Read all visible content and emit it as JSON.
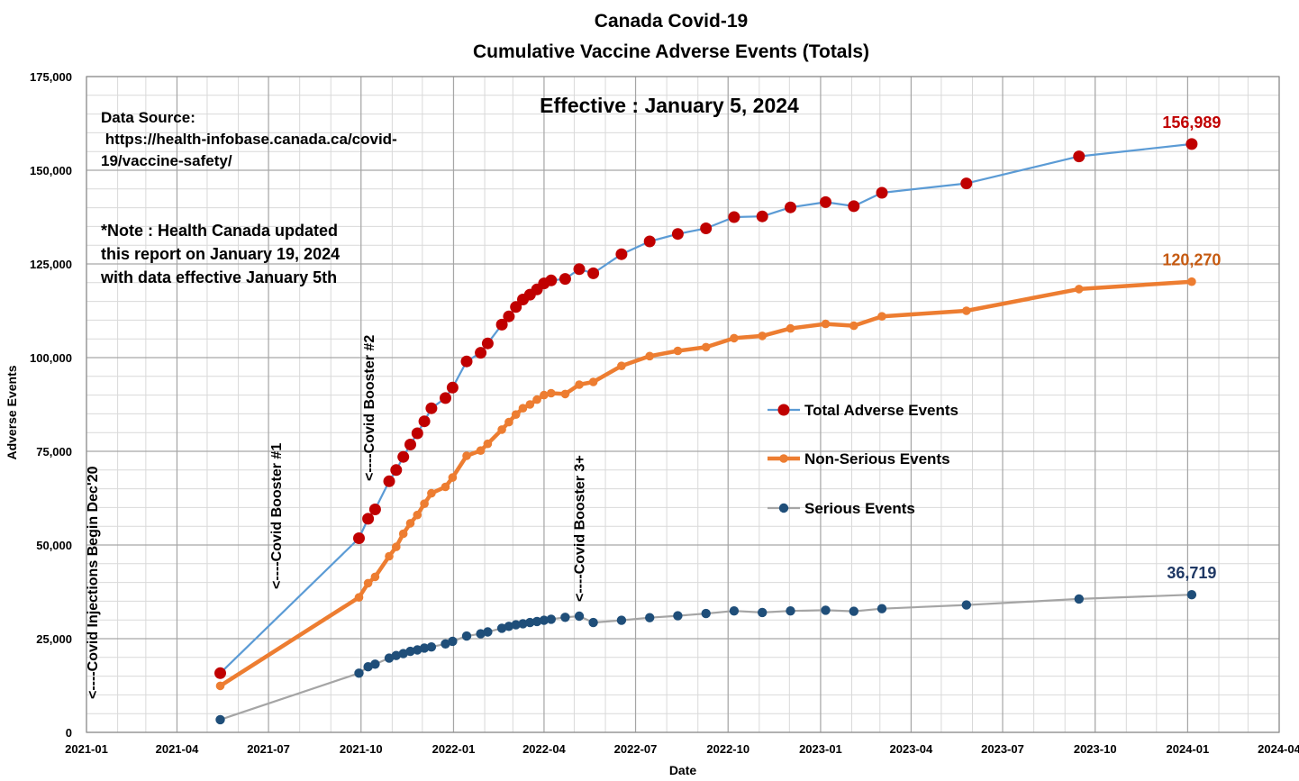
{
  "chart_data": {
    "type": "line",
    "title": "Canada Covid-19",
    "subtitle": "Cumulative Vaccine Adverse Events (Totals)",
    "xlabel": "Date",
    "ylabel": "Adverse Events",
    "ylim": [
      0,
      175000
    ],
    "xlim": [
      "2021-01-01",
      "2024-04-01"
    ],
    "grid": true,
    "legend_position": "center-right",
    "y_ticks": [
      "0",
      "25,000",
      "50,000",
      "75,000",
      "100,000",
      "125,000",
      "150,000",
      "175,000"
    ],
    "x_ticks": [
      {
        "date": "2021-01-01",
        "label": "2021-01"
      },
      {
        "date": "2021-04-01",
        "label": "2021-04"
      },
      {
        "date": "2021-07-01",
        "label": "2021-07"
      },
      {
        "date": "2021-10-01",
        "label": "2021-10"
      },
      {
        "date": "2022-01-01",
        "label": "2022-01"
      },
      {
        "date": "2022-04-01",
        "label": "2022-04"
      },
      {
        "date": "2022-07-01",
        "label": "2022-07"
      },
      {
        "date": "2022-10-01",
        "label": "2022-10"
      },
      {
        "date": "2023-01-01",
        "label": "2023-01"
      },
      {
        "date": "2023-04-01",
        "label": "2023-04"
      },
      {
        "date": "2023-07-01",
        "label": "2023-07"
      },
      {
        "date": "2023-10-01",
        "label": "2023-10"
      },
      {
        "date": "2024-01-01",
        "label": "2024-01"
      },
      {
        "date": "2024-04-01",
        "label": "2024-04"
      }
    ],
    "effective_label": "Effective : January 5, 2024",
    "source_lines": [
      "Data Source:",
      " https://health-infobase.canada.ca/covid-",
      "19/vaccine-safety/"
    ],
    "note_lines": [
      "*Note : Health Canada updated",
      "this report on January 19, 2024",
      "with data effective January 5th"
    ],
    "events": [
      {
        "date": "2021-01-01",
        "label": "<----Covid Injections Begin Dec'20"
      },
      {
        "date": "2021-07-01",
        "label": "<----Covid Booster #1"
      },
      {
        "date": "2021-10-01",
        "label": "<----Covid Booster #2"
      },
      {
        "date": "2022-05-01",
        "label": "<----Covid Booster 3+"
      }
    ],
    "series": [
      {
        "name": "Total Adverse Events",
        "color": "#5b9bd5",
        "marker_color": "#c00000",
        "end_label": "156,989",
        "end_label_color": "#c00000",
        "points": [
          [
            "2021-05-14",
            15800
          ],
          [
            "2021-09-29",
            51800
          ],
          [
            "2021-10-08",
            57000
          ],
          [
            "2021-10-15",
            59500
          ],
          [
            "2021-10-29",
            67000
          ],
          [
            "2021-11-05",
            70000
          ],
          [
            "2021-11-12",
            73500
          ],
          [
            "2021-11-19",
            76800
          ],
          [
            "2021-11-26",
            79800
          ],
          [
            "2021-12-03",
            83000
          ],
          [
            "2021-12-10",
            86500
          ],
          [
            "2021-12-24",
            89200
          ],
          [
            "2021-12-31",
            92000
          ],
          [
            "2022-01-14",
            99000
          ],
          [
            "2022-01-28",
            101300
          ],
          [
            "2022-02-04",
            103800
          ],
          [
            "2022-02-18",
            108800
          ],
          [
            "2022-02-25",
            111000
          ],
          [
            "2022-03-04",
            113500
          ],
          [
            "2022-03-11",
            115500
          ],
          [
            "2022-03-18",
            116800
          ],
          [
            "2022-03-25",
            118200
          ],
          [
            "2022-04-01",
            119800
          ],
          [
            "2022-04-08",
            120600
          ],
          [
            "2022-04-22",
            121000
          ],
          [
            "2022-05-06",
            123600
          ],
          [
            "2022-05-20",
            122500
          ],
          [
            "2022-06-17",
            127600
          ],
          [
            "2022-07-15",
            131000
          ],
          [
            "2022-08-12",
            133000
          ],
          [
            "2022-09-09",
            134500
          ],
          [
            "2022-10-07",
            137500
          ],
          [
            "2022-11-04",
            137700
          ],
          [
            "2022-12-02",
            140100
          ],
          [
            "2023-01-06",
            141500
          ],
          [
            "2023-02-03",
            140400
          ],
          [
            "2023-03-03",
            144000
          ],
          [
            "2023-05-26",
            146500
          ],
          [
            "2023-09-15",
            153700
          ],
          [
            "2024-01-05",
            156989
          ]
        ]
      },
      {
        "name": "Non-Serious Events",
        "color": "#ed7d31",
        "marker_color": "#ed7d31",
        "end_label": "120,270",
        "end_label_color": "#c55a11",
        "points": [
          [
            "2021-05-14",
            12400
          ],
          [
            "2021-09-29",
            36000
          ],
          [
            "2021-10-08",
            39800
          ],
          [
            "2021-10-15",
            41500
          ],
          [
            "2021-10-29",
            47000
          ],
          [
            "2021-11-05",
            49500
          ],
          [
            "2021-11-12",
            53000
          ],
          [
            "2021-11-19",
            55800
          ],
          [
            "2021-11-26",
            58000
          ],
          [
            "2021-12-03",
            61000
          ],
          [
            "2021-12-10",
            63800
          ],
          [
            "2021-12-24",
            65500
          ],
          [
            "2021-12-31",
            68000
          ],
          [
            "2022-01-14",
            73800
          ],
          [
            "2022-01-28",
            75200
          ],
          [
            "2022-02-04",
            77000
          ],
          [
            "2022-02-18",
            80800
          ],
          [
            "2022-02-25",
            82800
          ],
          [
            "2022-03-04",
            84800
          ],
          [
            "2022-03-11",
            86500
          ],
          [
            "2022-03-18",
            87500
          ],
          [
            "2022-03-25",
            88800
          ],
          [
            "2022-04-01",
            90000
          ],
          [
            "2022-04-08",
            90500
          ],
          [
            "2022-04-22",
            90300
          ],
          [
            "2022-05-06",
            92800
          ],
          [
            "2022-05-20",
            93500
          ],
          [
            "2022-06-17",
            97800
          ],
          [
            "2022-07-15",
            100400
          ],
          [
            "2022-08-12",
            101800
          ],
          [
            "2022-09-09",
            102800
          ],
          [
            "2022-10-07",
            105200
          ],
          [
            "2022-11-04",
            105800
          ],
          [
            "2022-12-02",
            107800
          ],
          [
            "2023-01-06",
            109000
          ],
          [
            "2023-02-03",
            108500
          ],
          [
            "2023-03-03",
            111000
          ],
          [
            "2023-05-26",
            112500
          ],
          [
            "2023-09-15",
            118300
          ],
          [
            "2024-01-05",
            120270
          ]
        ]
      },
      {
        "name": "Serious Events",
        "color": "#a5a5a5",
        "marker_color": "#1f4e79",
        "end_label": "36,719",
        "end_label_color": "#1f3864",
        "points": [
          [
            "2021-05-14",
            3400
          ],
          [
            "2021-09-29",
            15800
          ],
          [
            "2021-10-08",
            17500
          ],
          [
            "2021-10-15",
            18200
          ],
          [
            "2021-10-29",
            19800
          ],
          [
            "2021-11-05",
            20500
          ],
          [
            "2021-11-12",
            21000
          ],
          [
            "2021-11-19",
            21600
          ],
          [
            "2021-11-26",
            22000
          ],
          [
            "2021-12-03",
            22500
          ],
          [
            "2021-12-10",
            22800
          ],
          [
            "2021-12-24",
            23600
          ],
          [
            "2021-12-31",
            24300
          ],
          [
            "2022-01-14",
            25700
          ],
          [
            "2022-01-28",
            26300
          ],
          [
            "2022-02-04",
            26800
          ],
          [
            "2022-02-18",
            27800
          ],
          [
            "2022-02-25",
            28300
          ],
          [
            "2022-03-04",
            28700
          ],
          [
            "2022-03-11",
            29000
          ],
          [
            "2022-03-18",
            29300
          ],
          [
            "2022-03-25",
            29600
          ],
          [
            "2022-04-01",
            29900
          ],
          [
            "2022-04-08",
            30200
          ],
          [
            "2022-04-22",
            30700
          ],
          [
            "2022-05-06",
            31000
          ],
          [
            "2022-05-20",
            29300
          ],
          [
            "2022-06-17",
            29900
          ],
          [
            "2022-07-15",
            30600
          ],
          [
            "2022-08-12",
            31100
          ],
          [
            "2022-09-09",
            31700
          ],
          [
            "2022-10-07",
            32400
          ],
          [
            "2022-11-04",
            32000
          ],
          [
            "2022-12-02",
            32400
          ],
          [
            "2023-01-06",
            32600
          ],
          [
            "2023-02-03",
            32300
          ],
          [
            "2023-03-03",
            33000
          ],
          [
            "2023-05-26",
            34000
          ],
          [
            "2023-09-15",
            35600
          ],
          [
            "2024-01-05",
            36719
          ]
        ]
      }
    ]
  }
}
